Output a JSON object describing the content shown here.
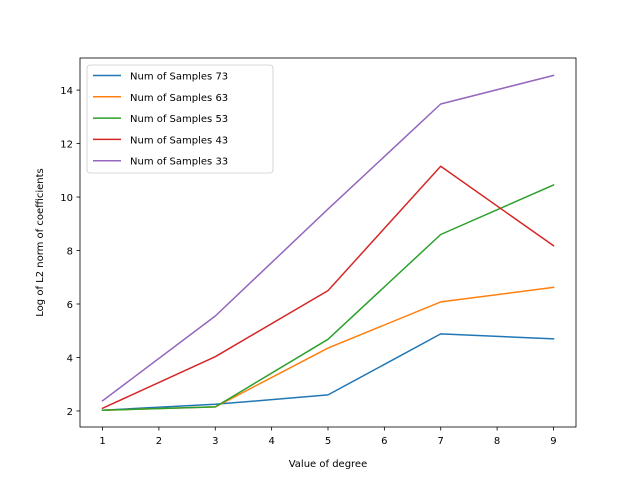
{
  "chart_data": {
    "type": "line",
    "title": "",
    "xlabel": "Value of degree",
    "ylabel": "Log of L2 norm of coefficients",
    "x": [
      1,
      3,
      5,
      7,
      9
    ],
    "xlim": [
      0.6,
      9.4
    ],
    "ylim": [
      1.4,
      15.2
    ],
    "xticks": [
      1,
      2,
      3,
      4,
      5,
      6,
      7,
      8,
      9
    ],
    "yticks": [
      2,
      4,
      6,
      8,
      10,
      12,
      14
    ],
    "grid": false,
    "legend_position": "upper-left",
    "series": [
      {
        "name": "Num of Samples 73",
        "color": "#1f77b4",
        "values": [
          2.03,
          2.25,
          2.6,
          4.88,
          4.7
        ]
      },
      {
        "name": "Num of Samples 63",
        "color": "#ff7f0e",
        "values": [
          2.03,
          2.15,
          4.35,
          6.08,
          6.62
        ]
      },
      {
        "name": "Num of Samples 53",
        "color": "#2ca02c",
        "values": [
          2.03,
          2.15,
          4.68,
          8.6,
          10.45
        ]
      },
      {
        "name": "Num of Samples 43",
        "color": "#d62728",
        "values": [
          2.1,
          4.03,
          6.5,
          11.15,
          8.18
        ]
      },
      {
        "name": "Num of Samples 33",
        "color": "#9467bd",
        "values": [
          2.38,
          5.55,
          9.55,
          13.48,
          14.55
        ]
      }
    ]
  }
}
